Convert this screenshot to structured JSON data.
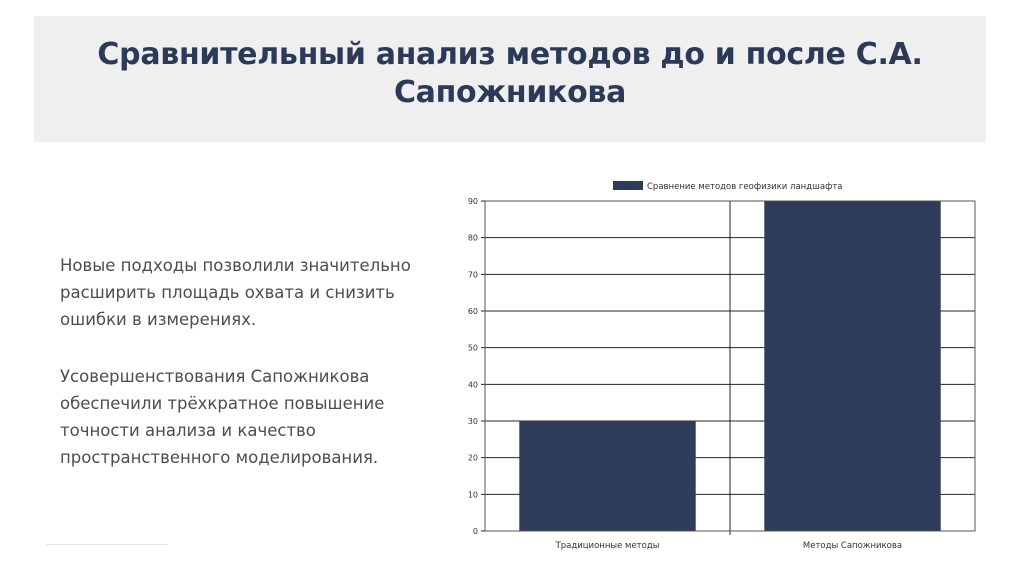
{
  "slide": {
    "title": "Сравнительный анализ методов до и после С.А. Сапожникова",
    "paragraphs": [
      "Новые подходы позволили значительно расширить площадь охвата и снизить ошибки в измерениях.",
      "Усовершенствования Сапожникова обеспечили трёхкратное повышение точности анализа и качество пространственного моделирования."
    ]
  },
  "chart_data": {
    "type": "bar",
    "categories": [
      "Традиционные методы",
      "Методы Сапожникова"
    ],
    "series": [
      {
        "name": "Сравнение методов геофизики ландшафта",
        "values": [
          30,
          90
        ]
      }
    ],
    "ylim": [
      0,
      90
    ],
    "yticks": [
      0,
      10,
      20,
      30,
      40,
      50,
      60,
      70,
      80,
      90
    ],
    "grid": true,
    "legend": "top-center",
    "colors": {
      "bar": "#2e3b5b",
      "grid": "#000000"
    }
  }
}
